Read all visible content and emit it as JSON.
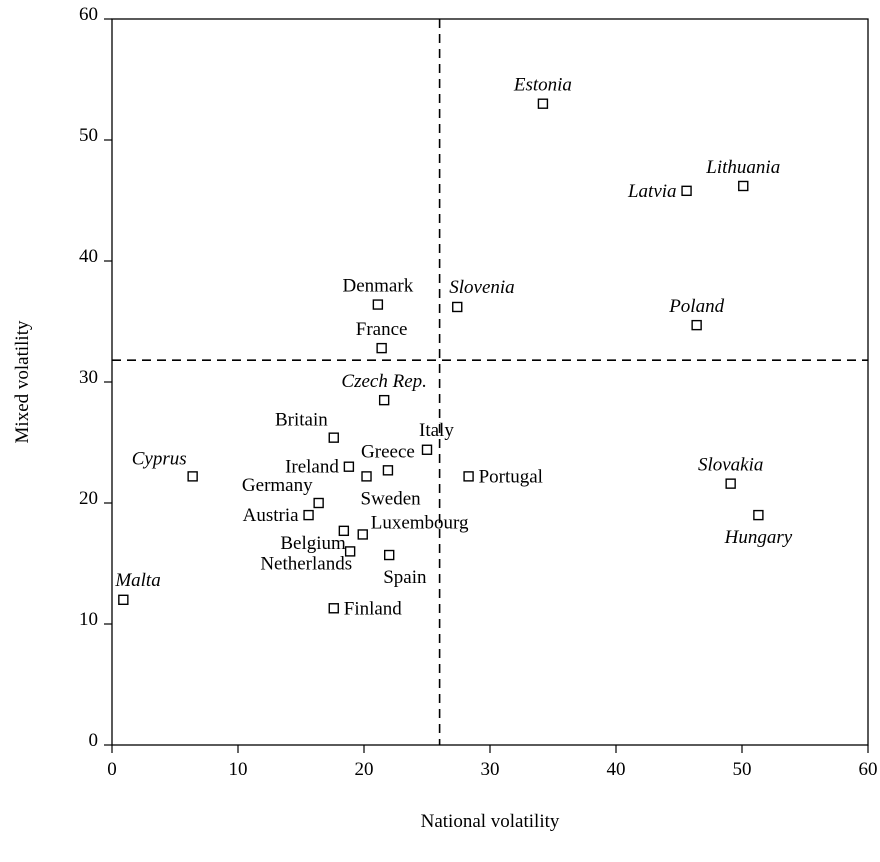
{
  "chart_data": {
    "type": "scatter",
    "title": "",
    "xlabel": "National volatility",
    "ylabel": "Mixed volatility",
    "xlim": [
      0,
      60
    ],
    "ylim": [
      0,
      60
    ],
    "xticks": [
      "0",
      "10",
      "20",
      "30",
      "40",
      "50",
      "60"
    ],
    "yticks": [
      "0",
      "10",
      "20",
      "30",
      "40",
      "50",
      "60"
    ],
    "grid": false,
    "reference_lines": {
      "x": 26,
      "y": 31.8
    },
    "marker": "open-square",
    "points": [
      {
        "label": "Estonia",
        "x": 34.2,
        "y": 53.0,
        "italic": true,
        "pos": "above"
      },
      {
        "label": "Latvia",
        "x": 45.6,
        "y": 45.8,
        "italic": true,
        "pos": "left"
      },
      {
        "label": "Lithuania",
        "x": 50.1,
        "y": 46.2,
        "italic": true,
        "pos": "above"
      },
      {
        "label": "Denmark",
        "x": 21.1,
        "y": 36.4,
        "italic": false,
        "pos": "above"
      },
      {
        "label": "Slovenia",
        "x": 27.4,
        "y": 36.2,
        "italic": true,
        "pos": "above-right"
      },
      {
        "label": "Poland",
        "x": 46.4,
        "y": 34.7,
        "italic": true,
        "pos": "above"
      },
      {
        "label": "France",
        "x": 21.4,
        "y": 32.8,
        "italic": false,
        "pos": "above"
      },
      {
        "label": "Czech Rep.",
        "x": 21.6,
        "y": 28.5,
        "italic": true,
        "pos": "above"
      },
      {
        "label": "Britain",
        "x": 17.6,
        "y": 25.4,
        "italic": false,
        "pos": "above-left"
      },
      {
        "label": "Italy",
        "x": 25.0,
        "y": 24.4,
        "italic": false,
        "pos": "above-right"
      },
      {
        "label": "Ireland",
        "x": 18.8,
        "y": 23.0,
        "italic": false,
        "pos": "left"
      },
      {
        "label": "Greece",
        "x": 21.9,
        "y": 22.7,
        "italic": false,
        "pos": "above"
      },
      {
        "label": "Sweden",
        "x": 20.2,
        "y": 22.2,
        "italic": false,
        "pos": "below-right"
      },
      {
        "label": "Cyprus",
        "x": 6.4,
        "y": 22.2,
        "italic": true,
        "pos": "above-left"
      },
      {
        "label": "Portugal",
        "x": 28.3,
        "y": 22.2,
        "italic": false,
        "pos": "right"
      },
      {
        "label": "Slovakia",
        "x": 49.1,
        "y": 21.6,
        "italic": true,
        "pos": "above"
      },
      {
        "label": "Germany",
        "x": 16.4,
        "y": 20.0,
        "italic": false,
        "pos": "above-left"
      },
      {
        "label": "Austria",
        "x": 15.6,
        "y": 19.0,
        "italic": false,
        "pos": "left"
      },
      {
        "label": "Hungary",
        "x": 51.3,
        "y": 19.0,
        "italic": true,
        "pos": "below"
      },
      {
        "label": "Belgium",
        "x": 18.4,
        "y": 17.7,
        "italic": false,
        "pos": "below-left"
      },
      {
        "label": "Luxembourg",
        "x": 19.9,
        "y": 17.4,
        "italic": false,
        "pos": "right-above"
      },
      {
        "label": "Netherlands",
        "x": 18.9,
        "y": 16.0,
        "italic": false,
        "pos": "below-left"
      },
      {
        "label": "Spain",
        "x": 22.0,
        "y": 15.7,
        "italic": false,
        "pos": "below-right"
      },
      {
        "label": "Malta",
        "x": 0.9,
        "y": 12.0,
        "italic": true,
        "pos": "above-right"
      },
      {
        "label": "Finland",
        "x": 17.6,
        "y": 11.3,
        "italic": false,
        "pos": "right"
      }
    ]
  }
}
